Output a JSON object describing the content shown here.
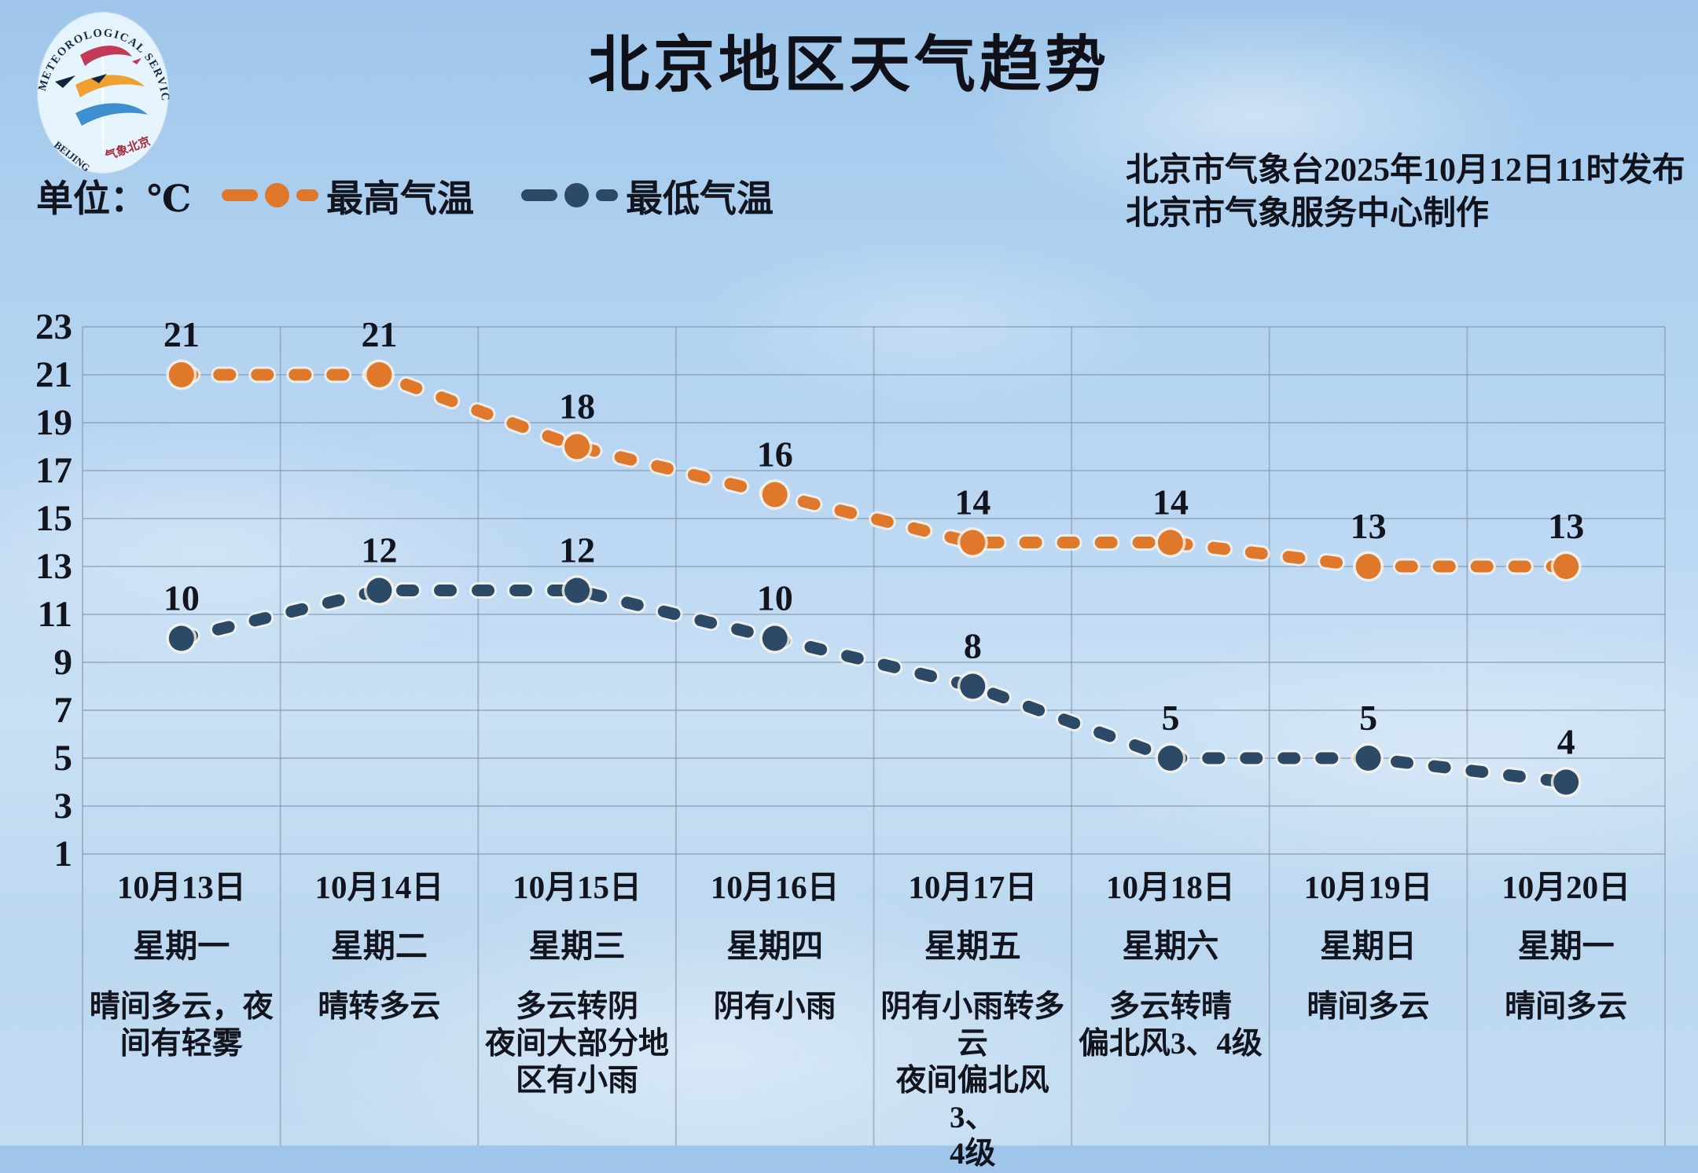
{
  "header": {
    "title": "北京地区天气趋势",
    "unit_label": "单位：℃",
    "release_line1": "北京市气象台2025年10月12日11时发布",
    "release_line2": "北京市气象服务中心制作",
    "logo": {
      "arc_top": "METEOROLOGICAL SERVICE",
      "arc_bottom_left": "BEIJING",
      "arc_bottom_right": "气象北京"
    }
  },
  "legend": [
    {
      "label": "最高气温",
      "color": "#E0782C"
    },
    {
      "label": "最低气温",
      "color": "#2C4A66"
    }
  ],
  "chart_data": {
    "type": "line",
    "categories": [
      "10月13日",
      "10月14日",
      "10月15日",
      "10月16日",
      "10月17日",
      "10月18日",
      "10月19日",
      "10月20日"
    ],
    "series": [
      {
        "name": "最高气温",
        "color": "#E0782C",
        "values": [
          21,
          21,
          18,
          16,
          14,
          14,
          13,
          13
        ]
      },
      {
        "name": "最低气温",
        "color": "#2C4A66",
        "values": [
          10,
          12,
          12,
          10,
          8,
          5,
          5,
          4
        ]
      }
    ],
    "title": "北京地区天气趋势",
    "ylabel": "单位：℃",
    "ylim": [
      1,
      23
    ],
    "yticks": [
      23,
      21,
      19,
      17,
      15,
      13,
      11,
      9,
      7,
      5,
      3,
      1
    ],
    "grid": true,
    "line_style": "dashed",
    "legend_position": "top-left"
  },
  "days": [
    {
      "date": "10月13日",
      "weekday": "星期一",
      "weather_lines": [
        "晴间多云，夜",
        "间有轻雾"
      ]
    },
    {
      "date": "10月14日",
      "weekday": "星期二",
      "weather_lines": [
        "晴转多云"
      ]
    },
    {
      "date": "10月15日",
      "weekday": "星期三",
      "weather_lines": [
        "多云转阴",
        "夜间大部分地",
        "区有小雨"
      ]
    },
    {
      "date": "10月16日",
      "weekday": "星期四",
      "weather_lines": [
        "阴有小雨"
      ]
    },
    {
      "date": "10月17日",
      "weekday": "星期五",
      "weather_lines": [
        "阴有小雨转多",
        "云",
        "夜间偏北风3、",
        "4级"
      ]
    },
    {
      "date": "10月18日",
      "weekday": "星期六",
      "weather_lines": [
        "多云转晴",
        "偏北风3、4级"
      ]
    },
    {
      "date": "10月19日",
      "weekday": "星期日",
      "weather_lines": [
        "晴间多云"
      ]
    },
    {
      "date": "10月20日",
      "weekday": "星期一",
      "weather_lines": [
        "晴间多云"
      ]
    }
  ],
  "colors": {
    "high_line": "#E0782C",
    "low_line": "#2C4A66",
    "grid": "#8494A8",
    "text": "#12141E",
    "halo": "#F7EFE2",
    "logo_red": "#C23A56",
    "logo_orange": "#F0A030",
    "logo_blue": "#3E8ED0",
    "logo_navy": "#16294A"
  }
}
